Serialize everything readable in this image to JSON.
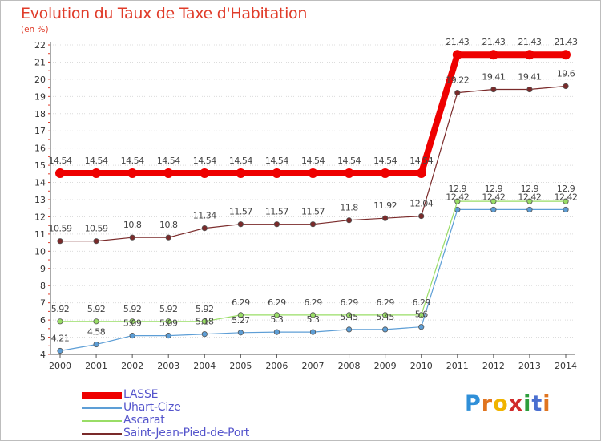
{
  "header": {
    "title": "Evolution du Taux de Taxe d'Habitation",
    "unit": "(en %)"
  },
  "brand": {
    "name": "Proxiti",
    "letters": [
      "P",
      "r",
      "o",
      "x",
      "i",
      "t",
      "i"
    ],
    "letter_colors": [
      "#2f8fd8",
      "#e0741f",
      "#f0b400",
      "#d12b2b",
      "#2e9e3c",
      "#4a6fd0",
      "#e0741f"
    ]
  },
  "chart_data": {
    "type": "line",
    "x": [
      "2000",
      "2001",
      "2002",
      "2003",
      "2004",
      "2005",
      "2006",
      "2007",
      "2008",
      "2009",
      "2010",
      "2011",
      "2012",
      "2013",
      "2014"
    ],
    "ylim": [
      4,
      22
    ],
    "yticks": [
      "4",
      "5",
      "6",
      "7",
      "8",
      "9",
      "10",
      "11",
      "12",
      "13",
      "14",
      "15",
      "16",
      "17",
      "18",
      "19",
      "20",
      "21",
      "22"
    ],
    "grid": "horizontal",
    "legend": "bottom-left",
    "series": [
      {
        "name": "LASSE",
        "color": "#ee0000",
        "values": [
          14.54,
          14.54,
          14.54,
          14.54,
          14.54,
          14.54,
          14.54,
          14.54,
          14.54,
          14.54,
          14.54,
          21.43,
          21.43,
          21.43,
          21.43
        ],
        "labels": [
          "14.54",
          "14.54",
          "14.54",
          "14.54",
          "14.54",
          "14.54",
          "14.54",
          "14.54",
          "14.54",
          "14.54",
          "14.54",
          "21.43",
          "21.43",
          "21.43",
          "21.43"
        ]
      },
      {
        "name": "Uhart-Cize",
        "color": "#5d9ed6",
        "values": [
          4.21,
          4.58,
          5.09,
          5.09,
          5.18,
          5.27,
          5.3,
          5.3,
          5.45,
          5.45,
          5.6,
          12.42,
          12.42,
          12.42,
          12.42
        ],
        "labels": [
          "4.21",
          "4.58",
          "5.09",
          "5.09",
          "5.18",
          "5.27",
          "5.3",
          "5.3",
          "5.45",
          "5.45",
          "5.6",
          "12.42",
          "12.42",
          "12.42",
          "12.42"
        ]
      },
      {
        "name": "Ascarat",
        "color": "#99dd66",
        "values": [
          5.92,
          5.92,
          5.92,
          5.92,
          5.92,
          6.29,
          6.29,
          6.29,
          6.29,
          6.29,
          6.29,
          12.9,
          12.9,
          12.9,
          12.9
        ],
        "labels": [
          "5.92",
          "5.92",
          "5.92",
          "5.92",
          "5.92",
          "6.29",
          "6.29",
          "6.29",
          "6.29",
          "6.29",
          "6.29",
          "12.9",
          "12.9",
          "12.9",
          "12.9"
        ]
      },
      {
        "name": "Saint-Jean-Pied-de-Port",
        "color": "#7a2a2a",
        "values": [
          10.59,
          10.59,
          10.8,
          10.8,
          11.34,
          11.57,
          11.57,
          11.57,
          11.8,
          11.92,
          12.04,
          19.22,
          19.41,
          19.41,
          19.6
        ],
        "labels": [
          "10.59",
          "10.59",
          "10.8",
          "10.8",
          "11.34",
          "11.57",
          "11.57",
          "11.57",
          "11.8",
          "11.92",
          "12.04",
          "19.22",
          "19.41",
          "19.41",
          "19.6"
        ]
      }
    ]
  }
}
